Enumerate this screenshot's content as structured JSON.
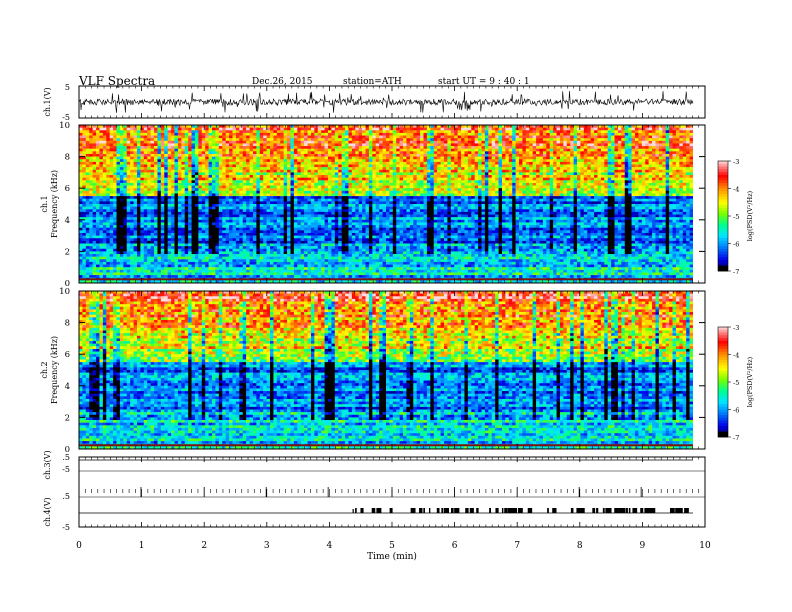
{
  "header": {
    "title": "VLF  Spectra",
    "date": "Dec.26, 2015",
    "station": "station=ATH",
    "start": "start  UT  =   9 : 40 : 1"
  },
  "chart_data": [
    {
      "type": "line",
      "panel": "ch1-waveform",
      "ylabel": "ch.1(V)",
      "yticks": [
        "5",
        "-5"
      ],
      "ylim": [
        -5,
        5
      ],
      "xlim": [
        0,
        10
      ]
    },
    {
      "type": "heatmap",
      "panel": "ch1-spectrogram",
      "ylabel_channel": "ch.1",
      "ylabel": "Frequency  (kHz)",
      "ylim": [
        0,
        10
      ],
      "yticks": [
        "0",
        "2",
        "4",
        "6",
        "8",
        "10"
      ],
      "colorbar": {
        "label": "log(PSD(V²/Hz)",
        "range": [
          -7,
          -3
        ],
        "ticks": [
          "-3",
          "-4",
          "-5",
          "-6",
          "-7"
        ],
        "colors": [
          "#000066",
          "#0000ff",
          "#00a0ff",
          "#00ffff",
          "#00ff80",
          "#80ff00",
          "#ffff00",
          "#ff8000",
          "#ff0000",
          "#ff8080",
          "#ffd0d0"
        ]
      }
    },
    {
      "type": "heatmap",
      "panel": "ch2-spectrogram",
      "ylabel_channel": "ch.2",
      "ylabel": "Frequency  (kHz)",
      "ylim": [
        0,
        10
      ],
      "yticks": [
        "0",
        "2",
        "4",
        "6",
        "8",
        "10"
      ],
      "colorbar": {
        "label": "log(PSD(V²/Hz)",
        "range": [
          -7,
          -3
        ],
        "ticks": [
          "-3",
          "-4",
          "-5",
          "-6",
          "-7"
        ]
      }
    },
    {
      "type": "line",
      "panel": "ch3-waveform",
      "ylabel": "ch.3(V)",
      "yticks": [
        ".5",
        "-5"
      ],
      "ylim": [
        -5,
        5
      ]
    },
    {
      "type": "line",
      "panel": "ch4-waveform",
      "ylabel": "ch.4(V)",
      "yticks": [
        ".5",
        "-5"
      ],
      "ylim": [
        -5,
        5
      ]
    }
  ],
  "xaxis": {
    "label": "Time  (min)",
    "ticks": [
      "0",
      "1",
      "2",
      "3",
      "4",
      "5",
      "6",
      "7",
      "8",
      "9",
      "10"
    ],
    "range": [
      0,
      10
    ]
  },
  "colors": {
    "axis": "#000000",
    "trace": "#000000",
    "background": "#ffffff"
  }
}
